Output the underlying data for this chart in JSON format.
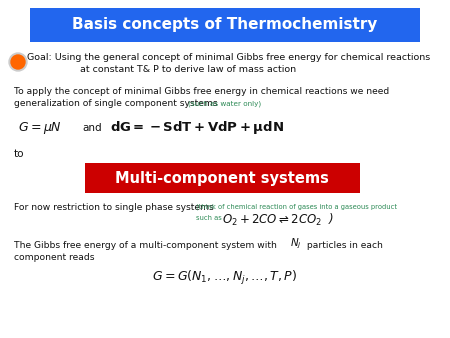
{
  "title": "Basis concepts of Thermochemistry",
  "title_bg": "#2266ee",
  "title_color": "white",
  "goal_text1": "Goal: Using the general concept of minimal Gibbs free energy for chemical reactions",
  "goal_text2": "at constant T& P to derive law of mass action",
  "body_text1": "To apply the concept of minimal Gibbs free energy in chemical reactions we need",
  "body_text2": "generalization of single component systems ",
  "body_text2_small": "(such as water only)",
  "to_text": "to",
  "multi_title": "Multi-component systems",
  "multi_bg": "#cc0000",
  "multi_color": "white",
  "single_phase1": "For now restriction to single phase systems ",
  "single_phase_small": "(think of chemical reaction of gases into a gaseous product",
  "single_phase_small2": "such as",
  "gibbs_text1a": "The Gibbs free energy of a multi-component system with ",
  "gibbs_text1b": " particles in each",
  "gibbs_text2": "component reads",
  "bg_color": "#ffffff",
  "main_text_color": "#111111",
  "small_text_color": "#2e8b57",
  "orange_circle_color": "#ff6600",
  "orange_ring_color": "#cccccc"
}
